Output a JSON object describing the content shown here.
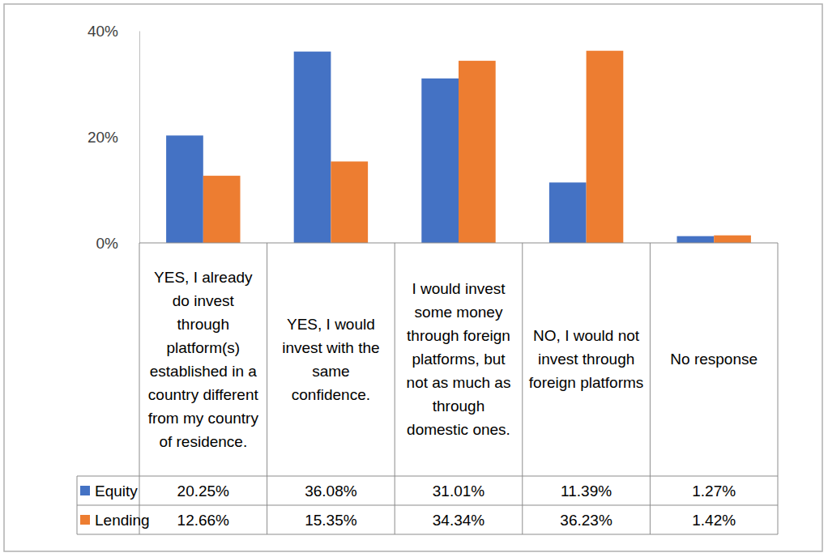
{
  "chart_data": {
    "type": "bar",
    "categories": [
      "YES, I already do invest through platform(s) established in a country different from my country of residence.",
      "YES, I would invest with the same confidence.",
      "I would invest some money through foreign platforms, but not as much as through domestic ones.",
      "NO, I would not invest through foreign platforms",
      "No response"
    ],
    "series": [
      {
        "name": "Equity",
        "color": "#4472c4",
        "values": [
          20.25,
          36.08,
          31.01,
          11.39,
          1.27
        ],
        "value_labels": [
          "20.25%",
          "36.08%",
          "31.01%",
          "11.39%",
          "1.27%"
        ]
      },
      {
        "name": "Lending",
        "color": "#ed7d31",
        "values": [
          12.66,
          15.35,
          34.34,
          36.23,
          1.42
        ],
        "value_labels": [
          "12.66%",
          "15.35%",
          "34.34%",
          "36.23%",
          "1.42%"
        ]
      }
    ],
    "ylim": [
      0,
      40
    ],
    "yticks": [
      {
        "value": 0,
        "label": "0%"
      },
      {
        "value": 20,
        "label": "20%"
      },
      {
        "value": 40,
        "label": "40%"
      }
    ],
    "grid": false
  }
}
